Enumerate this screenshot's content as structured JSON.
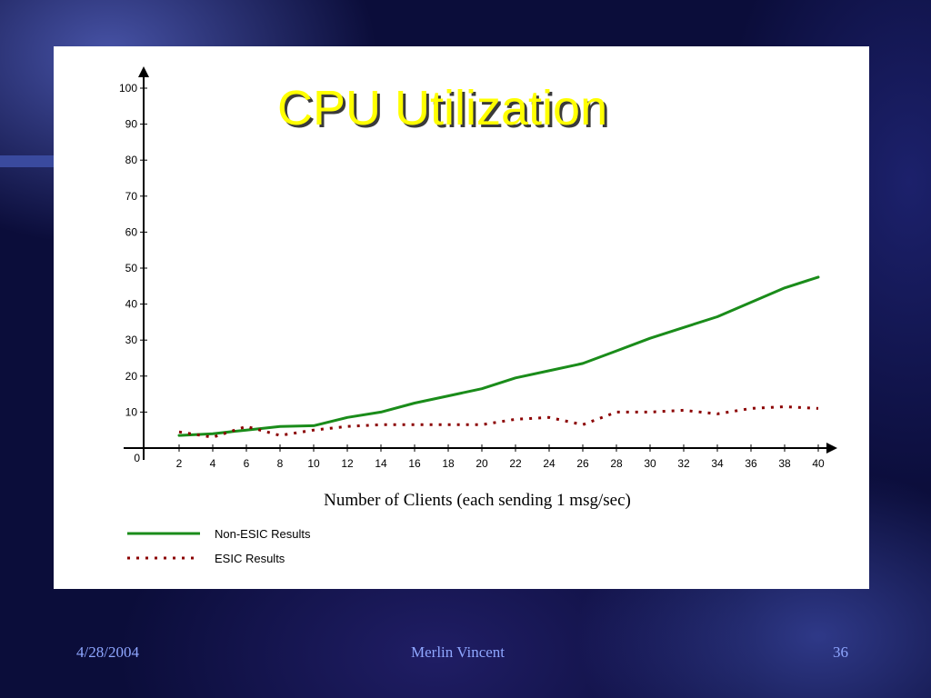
{
  "slide": {
    "title": "CPU Utilization",
    "footer": {
      "date": "4/28/2004",
      "author": "Merlin Vincent",
      "page": "36"
    }
  },
  "colors": {
    "title": "#ffff00",
    "footer": "#8fa7ff",
    "series1": "#1a8c1a",
    "series2": "#8b0000"
  },
  "chart_data": {
    "type": "line",
    "title": "CPU Utilization",
    "xlabel": "Number of Clients (each sending 1 msg/sec)",
    "ylabel": "",
    "x": [
      2,
      4,
      6,
      8,
      10,
      12,
      14,
      16,
      18,
      20,
      22,
      24,
      26,
      28,
      30,
      32,
      34,
      36,
      38,
      40
    ],
    "x_ticks": [
      "2",
      "4",
      "6",
      "8",
      "10",
      "12",
      "14",
      "16",
      "18",
      "20",
      "22",
      "24",
      "26",
      "28",
      "30",
      "32",
      "34",
      "36",
      "38",
      "40"
    ],
    "y_ticks": [
      "0",
      "10",
      "20",
      "30",
      "40",
      "50",
      "60",
      "70",
      "80",
      "90",
      "100"
    ],
    "ylim": [
      0,
      100
    ],
    "grid": false,
    "legend": "bottom-left",
    "series": [
      {
        "name": "Non-ESIC Results",
        "style": "solid",
        "values": [
          3.5,
          4,
          5,
          6,
          6.2,
          8.5,
          10,
          12.5,
          14.5,
          16.5,
          19.5,
          21.5,
          23.5,
          27,
          30.5,
          33.5,
          36.5,
          40.5,
          44.5,
          47.5
        ]
      },
      {
        "name": "ESIC Results",
        "style": "dotted",
        "values": [
          4.5,
          3,
          6,
          3.5,
          5,
          6,
          6.5,
          6.5,
          6.5,
          6.5,
          8,
          8.5,
          6.5,
          10,
          10,
          10.5,
          9.5,
          11,
          11.5,
          11
        ]
      }
    ]
  }
}
